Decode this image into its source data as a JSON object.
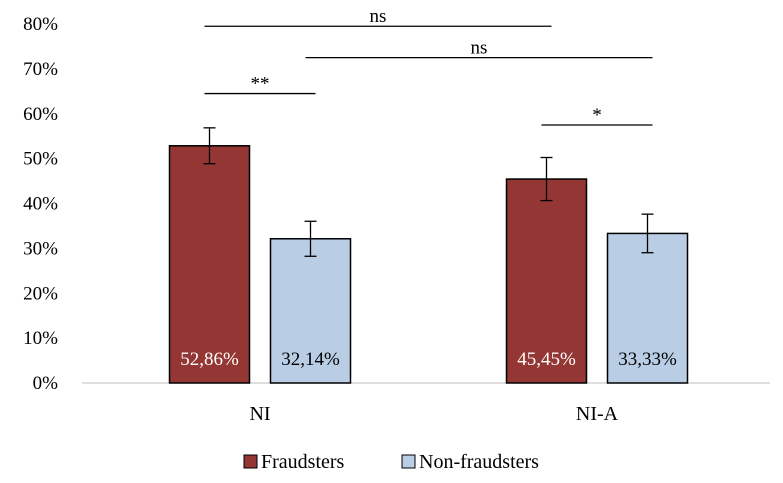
{
  "chart_data": {
    "type": "bar",
    "categories": [
      "NI",
      "NI-A"
    ],
    "series": [
      {
        "name": "Fraudsters",
        "values": [
          52.86,
          45.45
        ],
        "labels": [
          "52,86%",
          "45,45%"
        ],
        "error": [
          4.0,
          4.8
        ],
        "color": "#943634",
        "label_color": "#ffffff"
      },
      {
        "name": "Non-fraudsters",
        "values": [
          32.14,
          33.33
        ],
        "labels": [
          "32,14%",
          "33,33%"
        ],
        "error": [
          3.9,
          4.3
        ],
        "color": "#b9cde5",
        "label_color": "#000000"
      }
    ],
    "ylim": [
      0,
      80
    ],
    "yticks": [
      0,
      10,
      20,
      30,
      40,
      50,
      60,
      70,
      80
    ],
    "ytick_labels": [
      "0%",
      "10%",
      "20%",
      "30%",
      "40%",
      "50%",
      "60%",
      "70%",
      "80%"
    ],
    "grid": false,
    "legend_position": "bottom",
    "significance": [
      {
        "label": "ns",
        "from": [
          0,
          0
        ],
        "to": [
          1,
          0
        ],
        "y": 79.5
      },
      {
        "label": "ns",
        "from": [
          0,
          1
        ],
        "to": [
          1,
          1
        ],
        "y": 72.5
      },
      {
        "label": "**",
        "from": [
          0,
          0
        ],
        "to": [
          0,
          1
        ],
        "y": 64.5
      },
      {
        "label": "*",
        "from": [
          1,
          0
        ],
        "to": [
          1,
          1
        ],
        "y": 57.5
      }
    ]
  }
}
